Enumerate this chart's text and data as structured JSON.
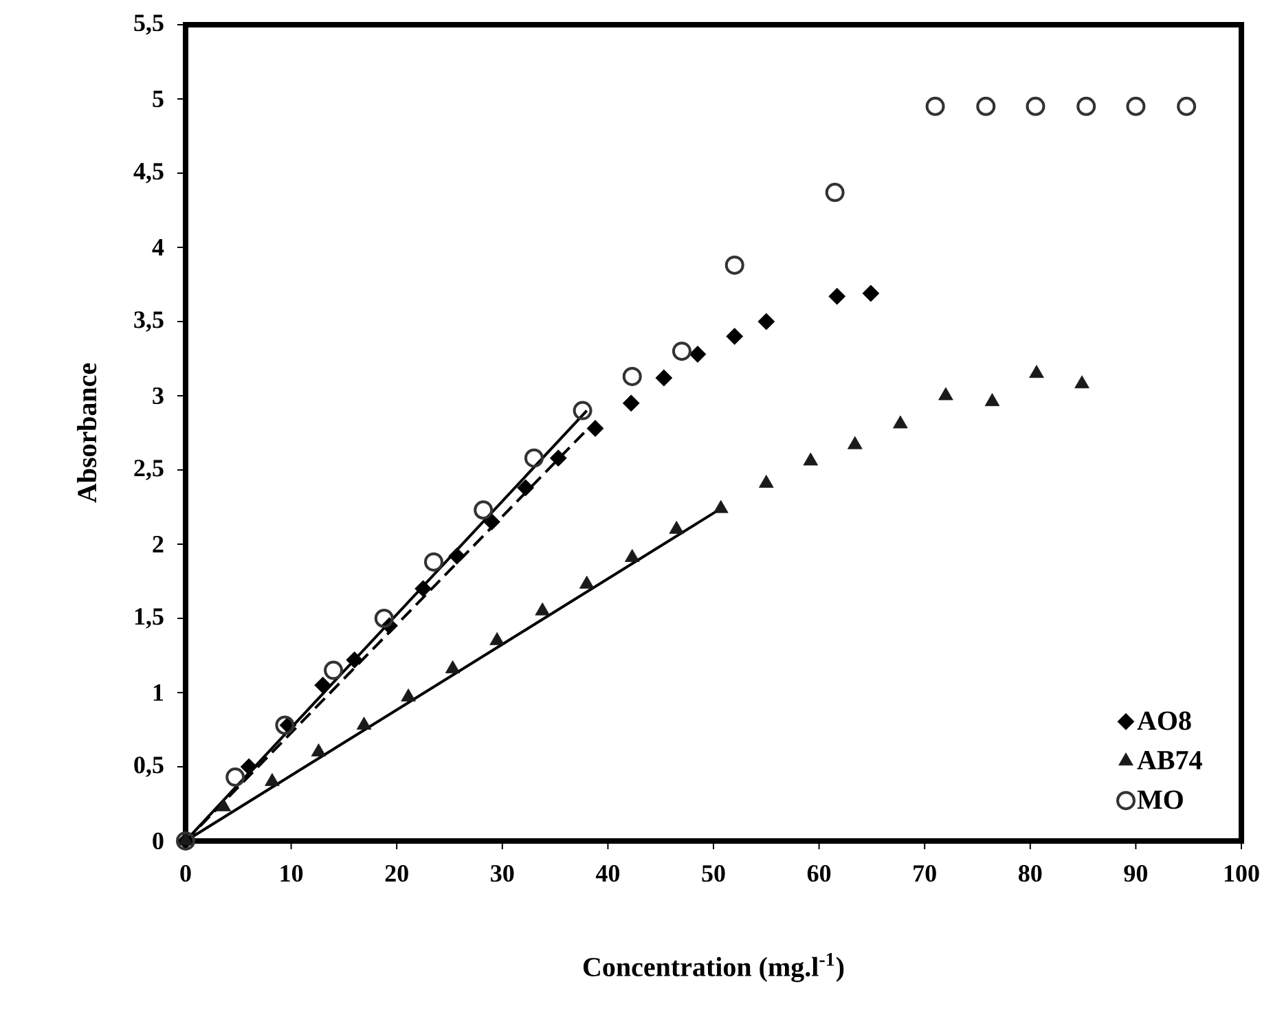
{
  "chart_data": {
    "type": "scatter",
    "xlabel": "Concentration (mg.l$^{-1}$)",
    "ylabel": "Absorbance",
    "xlim": [
      0,
      100
    ],
    "ylim": [
      0,
      5.5
    ],
    "xticks": [
      0,
      10,
      20,
      30,
      40,
      50,
      60,
      70,
      80,
      90,
      100
    ],
    "yticks": [
      0,
      {
        "value": 0.5,
        "label": "0,5"
      },
      1,
      {
        "value": 1.5,
        "label": "1,5"
      },
      2,
      {
        "value": 2.5,
        "label": "2,5"
      },
      3,
      {
        "value": 3.5,
        "label": "3,5"
      },
      4,
      {
        "value": 4.5,
        "label": "4,5"
      },
      5,
      {
        "value": 5.5,
        "label": "5,5"
      }
    ],
    "grid": false,
    "legend": "bottom right",
    "series": [
      {
        "name": "AO8",
        "color": "#000000",
        "marker": "diamond",
        "x": [
          0,
          6,
          9.7,
          13,
          16,
          19.3,
          22.5,
          25.7,
          29,
          32.2,
          35.3,
          38.8,
          42.2,
          45.3,
          48.5,
          52,
          55,
          61.7,
          64.9
        ],
        "values": [
          0,
          0.5,
          0.78,
          1.05,
          1.22,
          1.45,
          1.7,
          1.92,
          2.15,
          2.38,
          2.58,
          2.78,
          2.95,
          3.12,
          3.28,
          3.4,
          3.5,
          3.67,
          3.69
        ]
      },
      {
        "name": "AB74",
        "color": "#1a1a1a",
        "marker": "triangle",
        "x": [
          0,
          3.6,
          8.2,
          12.6,
          16.9,
          21.1,
          25.3,
          29.5,
          33.8,
          38,
          42.3,
          46.5,
          50.7,
          55,
          59.2,
          63.4,
          67.7,
          72,
          76.4,
          80.6,
          84.9
        ],
        "values": [
          0,
          0.23,
          0.4,
          0.6,
          0.78,
          0.97,
          1.16,
          1.35,
          1.55,
          1.73,
          1.91,
          2.1,
          2.24,
          2.41,
          2.56,
          2.67,
          2.81,
          3.0,
          2.96,
          3.15,
          3.08
        ]
      },
      {
        "name": "MO",
        "color": "#333333",
        "marker": "circle",
        "x": [
          0,
          4.7,
          9.4,
          14,
          18.8,
          23.5,
          28.2,
          33,
          37.6,
          42.3,
          47,
          52,
          61.5,
          71,
          75.8,
          80.5,
          85.3,
          90,
          94.8
        ],
        "values": [
          0,
          0.43,
          0.78,
          1.15,
          1.5,
          1.88,
          2.23,
          2.58,
          2.9,
          3.13,
          3.3,
          3.88,
          4.37,
          4.95,
          4.95,
          4.95,
          4.95,
          4.95,
          4.95
        ]
      },
      {
        "type": "line",
        "color": "#000000",
        "line_style": "dashed",
        "marker": "none",
        "x": [
          0,
          38
        ],
        "values": [
          0,
          2.77
        ]
      },
      {
        "type": "line",
        "color": "#000000",
        "line_style": "solid",
        "marker": "none",
        "x": [
          0,
          50.7
        ],
        "values": [
          0,
          2.24
        ]
      },
      {
        "type": "line",
        "color": "#000000",
        "line_style": "solid",
        "marker": "none",
        "x": [
          0,
          38
        ],
        "values": [
          0,
          2.9
        ]
      }
    ]
  }
}
